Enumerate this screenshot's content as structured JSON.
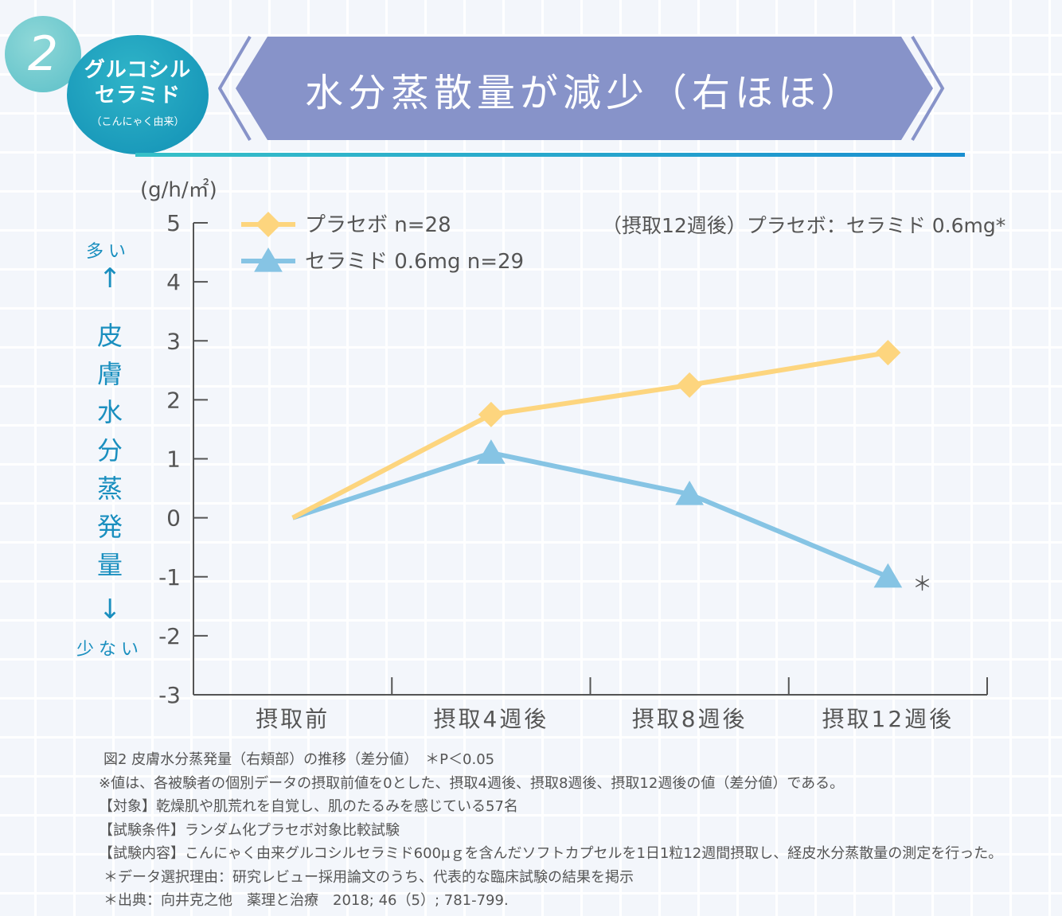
{
  "badge": {
    "number": "2",
    "line1": "グルコシル",
    "line2": "セラミド",
    "sub": "（こんにゃく由来）"
  },
  "banner": {
    "title": "水分蒸散量が減少（右ほほ）"
  },
  "colors": {
    "placebo": "#fdd57e",
    "ceramide": "#86c4e4",
    "accent": "#1a8fbf",
    "banner": "#8793c9"
  },
  "axis_side": {
    "top_label": "多い",
    "bottom_label": "少ない",
    "vertical_label": [
      "皮",
      "膚",
      "水",
      "分",
      "蒸",
      "発",
      "量"
    ],
    "up_arrow": "↑",
    "down_arrow": "↓"
  },
  "chart_data": {
    "type": "line",
    "unit_label": "(g/h/㎡)",
    "categories": [
      "摂取前",
      "摂取4週後",
      "摂取8週後",
      "摂取12週後"
    ],
    "series": [
      {
        "name": "プラセボ n=28",
        "marker": "diamond",
        "values": [
          0,
          1.75,
          2.25,
          2.8
        ]
      },
      {
        "name": "セラミド 0.6mg n=29",
        "marker": "triangle",
        "values": [
          0,
          1.1,
          0.4,
          -1.0
        ]
      }
    ],
    "yticks": [
      "5",
      "4",
      "3",
      "2",
      "1",
      "0",
      "-1",
      "-2",
      "-3"
    ],
    "ylim": [
      -3,
      5
    ],
    "significance_note": "（摂取12週後）プラセボ：セラミド 0.6mg*",
    "significance_marker": "＊",
    "legend_position": "top-left"
  },
  "caption": {
    "line1": "図2 皮膚水分蒸発量（右頬部）の推移（差分値）　＊P＜0.05",
    "line2": "※値は、各被験者の個別データの摂取前値を0とした、摂取4週後、摂取8週後、摂取12週後の値（差分値）である。",
    "line3": "【対象】乾燥肌や肌荒れを自覚し、肌のたるみを感じている57名",
    "line4": "【試験条件】ランダム化プラセボ対象比較試験",
    "line5": "【試験内容】こんにゃく由来グルコシルセラミド600μｇを含んだソフトカプセルを1日1粒12週間摂取し、経皮水分蒸散量の測定を行った。",
    "line6": "＊データ選択理由：研究レビュー採用論文のうち、代表的な臨床試験の結果を掲示",
    "line7": "＊出典：向井克之他　薬理と治療　2018; 46（5）; 781-799."
  }
}
